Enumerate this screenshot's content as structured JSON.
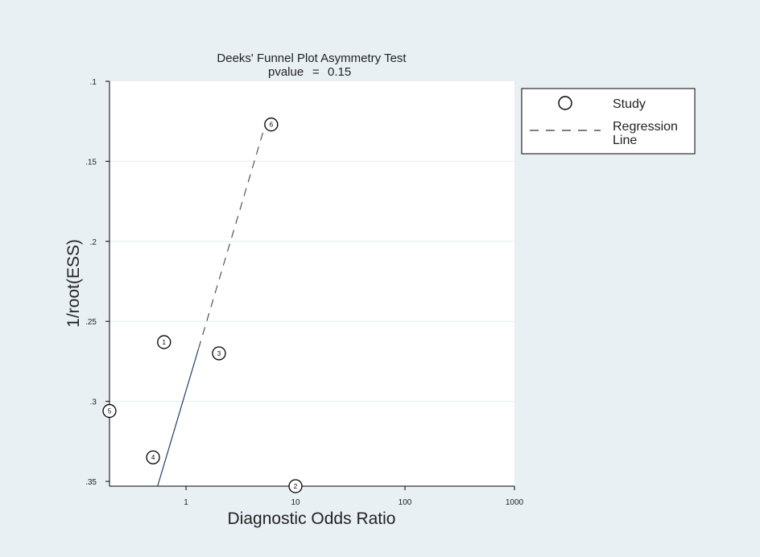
{
  "chart_data": {
    "type": "scatter",
    "title": "Deeks' Funnel Plot Asymmetry Test",
    "subtitle_label": "pvalue",
    "subtitle_equals": "=",
    "subtitle_value": "0.15",
    "xlabel": "Diagnostic Odds Ratio",
    "ylabel": "1/root(ESS)",
    "x_scale": "log",
    "xlim": [
      0.2,
      1000
    ],
    "x_ticks": [
      {
        "value": 1,
        "label": "1"
      },
      {
        "value": 10,
        "label": "10"
      },
      {
        "value": 100,
        "label": "100"
      },
      {
        "value": 1000,
        "label": "1000"
      }
    ],
    "y_reversed": true,
    "ylim": [
      0.1,
      0.353
    ],
    "y_ticks": [
      {
        "value": 0.1,
        "label": ".1"
      },
      {
        "value": 0.15,
        "label": ".15"
      },
      {
        "value": 0.2,
        "label": ".2"
      },
      {
        "value": 0.25,
        "label": ".25"
      },
      {
        "value": 0.3,
        "label": ".3"
      },
      {
        "value": 0.35,
        "label": ".35"
      }
    ],
    "grid": true,
    "legend_position": "right",
    "series": [
      {
        "name": "Study",
        "marker": "circle",
        "points": [
          {
            "label": "1",
            "x": 0.63,
            "y": 0.263
          },
          {
            "label": "2",
            "x": 10,
            "y": 0.353
          },
          {
            "label": "3",
            "x": 2.0,
            "y": 0.27
          },
          {
            "label": "4",
            "x": 0.5,
            "y": 0.335
          },
          {
            "label": "5",
            "x": 0.2,
            "y": 0.306
          },
          {
            "label": "6",
            "x": 6.0,
            "y": 0.127
          }
        ]
      },
      {
        "name": "Regression Line",
        "line": "dashed",
        "points": [
          {
            "x": 0.55,
            "y": 0.353
          },
          {
            "x": 5.3,
            "y": 0.127
          }
        ]
      }
    ]
  },
  "legend": {
    "items": [
      {
        "label_line1": "Study",
        "label_line2": ""
      },
      {
        "label_line1": "Regression",
        "label_line2": "Line"
      }
    ]
  },
  "colors": {
    "background": "#e9f0f4",
    "plot_area": "#ffffff",
    "grid": "#e4ebef",
    "marker": "#000000",
    "regression_solid": "#1f3f66",
    "regression_dashed": "#333333"
  }
}
